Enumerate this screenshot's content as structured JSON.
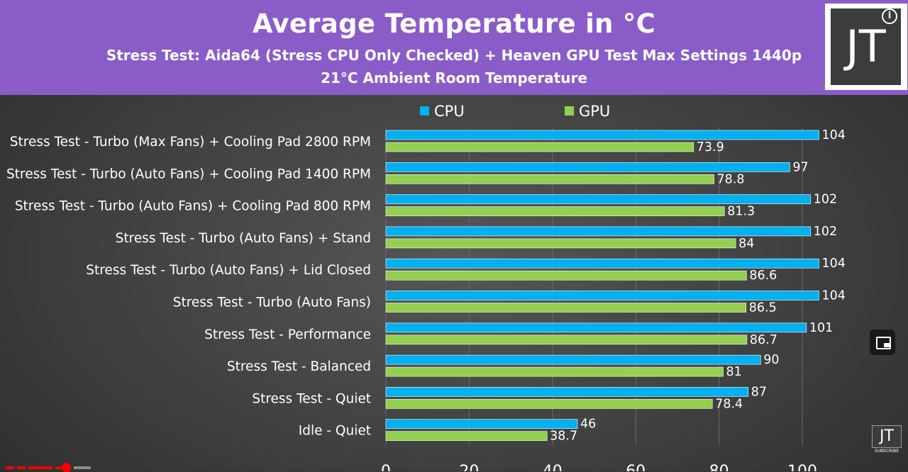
{
  "header": {
    "title": "Average Temperature in °C",
    "subtitle_line1": "Stress Test: Aida64 (Stress CPU Only Checked) + Heaven GPU Test Max Settings 1440p",
    "subtitle_line2": "21°C Ambient Room Temperature",
    "logo_text": "JT",
    "background_color": "#8a5cc8"
  },
  "overlay": {
    "subscribe_logo_text": "JT",
    "subscribe_label": "SUBSCRIBE",
    "info_icon": "info-icon",
    "pip_icon": "picture-in-picture-icon",
    "progress_color": "#ff0000"
  },
  "chart_data": {
    "type": "bar",
    "orientation": "horizontal",
    "title": "Average Temperature in °C",
    "categories": [
      "Stress Test - Turbo (Max Fans) + Cooling Pad 2800 RPM",
      "Stress Test - Turbo (Auto Fans) + Cooling Pad 1400 RPM",
      "Stress Test - Turbo (Auto Fans) + Cooling Pad 800 RPM",
      "Stress Test - Turbo (Auto Fans) + Stand",
      "Stress Test - Turbo (Auto Fans) + Lid Closed",
      "Stress Test - Turbo (Auto Fans)",
      "Stress Test - Performance",
      "Stress Test - Balanced",
      "Stress Test - Quiet",
      "Idle - Quiet"
    ],
    "series": [
      {
        "name": "CPU",
        "color": "#00b0f0",
        "values": [
          104,
          97,
          102,
          102,
          104,
          104,
          101,
          90,
          87,
          46
        ],
        "labels": [
          "104",
          "97",
          "102",
          "102",
          "104",
          "104",
          "101",
          "90",
          "87",
          "46"
        ]
      },
      {
        "name": "GPU",
        "color": "#92d050",
        "values": [
          73.9,
          78.8,
          81.3,
          84,
          86.6,
          86.5,
          86.7,
          81,
          78.4,
          38.7
        ],
        "labels": [
          "73.9",
          "78.8",
          "81.3",
          "84",
          "86.6",
          "86.5",
          "86.7",
          "81",
          "78.4",
          "38.7"
        ]
      }
    ],
    "xlim": [
      0,
      100
    ],
    "x_ticks": [
      "0",
      "20",
      "40",
      "60",
      "80",
      "100"
    ],
    "legend_position": "top",
    "grid": true,
    "data_labels": true
  }
}
